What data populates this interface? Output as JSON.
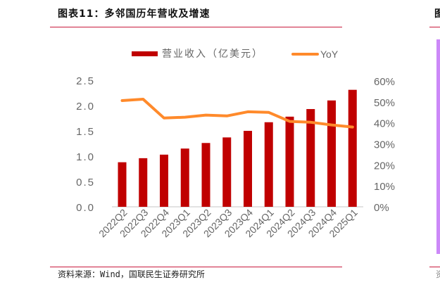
{
  "header": {
    "title": "图表11：多邻国历年营收及增速",
    "right_title_fragment": "图"
  },
  "footer": {
    "source": "资料来源：Wind，国联民生证券研究所",
    "right_source_fragment": "资"
  },
  "colors": {
    "bar": "#c00000",
    "line": "#ff8a2b",
    "rule": "#c8193c",
    "axis_text": "#666666",
    "accent_strip": "#cc88f8"
  },
  "legend": {
    "bar_label": "营业收入（亿美元）",
    "line_label": "YoY"
  },
  "chart_data": {
    "type": "bar",
    "title": "多邻国历年营收及增速",
    "xlabel": "",
    "ylabel": "营业收入（亿美元）",
    "y2label": "YoY",
    "categories": [
      "2022Q2",
      "2022Q3",
      "2022Q4",
      "2023Q1",
      "2023Q2",
      "2023Q3",
      "2023Q4",
      "2024Q1",
      "2024Q2",
      "2024Q3",
      "2024Q4",
      "2025Q1"
    ],
    "series": [
      {
        "name": "营业收入（亿美元）",
        "type": "bar",
        "axis": "left",
        "values": [
          0.88,
          0.96,
          1.03,
          1.15,
          1.26,
          1.37,
          1.5,
          1.67,
          1.78,
          1.93,
          2.1,
          2.31
        ]
      },
      {
        "name": "YoY",
        "type": "line",
        "axis": "right",
        "unit": "%",
        "values": [
          50.6,
          51.3,
          42.3,
          42.7,
          43.7,
          43.3,
          45.3,
          45.0,
          40.7,
          40.3,
          39.0,
          38.0
        ]
      }
    ],
    "ylim": [
      0,
      2.5
    ],
    "y_ticks": [
      "0.0",
      "0.5",
      "1.0",
      "1.5",
      "2.0",
      "2.5"
    ],
    "y2lim": [
      0,
      60
    ],
    "y2_ticks": [
      "0%",
      "10%",
      "20%",
      "30%",
      "40%",
      "50%",
      "60%"
    ],
    "grid": false,
    "legend_position": "top"
  }
}
